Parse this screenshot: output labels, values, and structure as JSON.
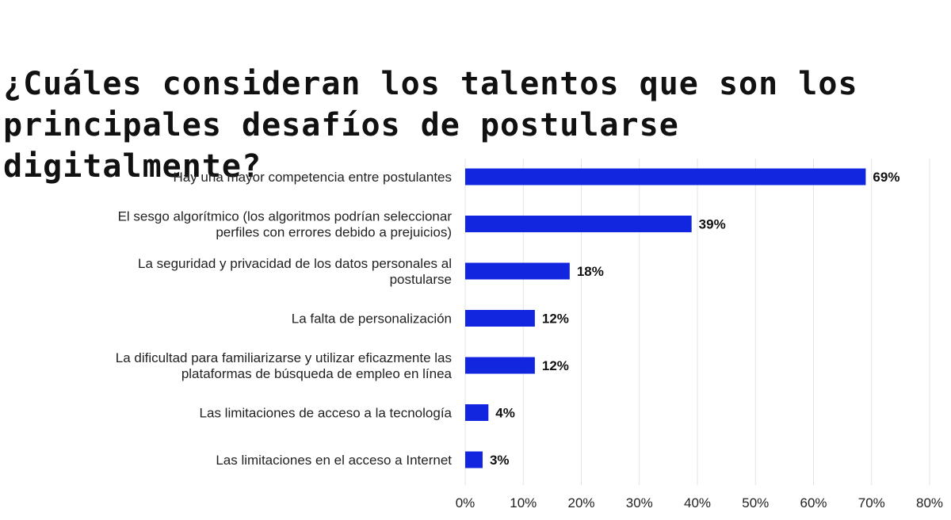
{
  "chart_data": {
    "type": "bar",
    "orientation": "horizontal",
    "title": "¿Cuáles consideran los talentos que son los principales desafíos de postularse digitalmente?",
    "categories": [
      "Hay una mayor competencia entre postulantes",
      "El sesgo algorítmico (los algoritmos podrían seleccionar perfiles con errores debido a prejuicios)",
      "La seguridad y privacidad de los datos personales al postularse",
      "La falta de personalización",
      "La dificultad para familiarizarse y utilizar eficazmente las plataformas de búsqueda de empleo en línea",
      "Las limitaciones de acceso a la tecnología",
      "Las limitaciones en el acceso a Internet"
    ],
    "category_lines": [
      [
        "Hay una mayor competencia entre postulantes"
      ],
      [
        "El sesgo algorítmico (los algoritmos podrían seleccionar",
        "perfiles con errores debido a prejuicios)"
      ],
      [
        "La seguridad y privacidad de los datos personales al",
        "postularse"
      ],
      [
        "La falta de personalización"
      ],
      [
        "La dificultad para familiarizarse y utilizar eficazmente las",
        "plataformas de búsqueda de empleo en línea"
      ],
      [
        "Las limitaciones de acceso a la tecnología"
      ],
      [
        "Las limitaciones en el acceso a Internet"
      ]
    ],
    "values": [
      69,
      39,
      18,
      12,
      12,
      4,
      3
    ],
    "value_labels": [
      "69%",
      "39%",
      "18%",
      "12%",
      "12%",
      "4%",
      "3%"
    ],
    "xlim": [
      0,
      80
    ],
    "x_ticks": [
      "0%",
      "10%",
      "20%",
      "30%",
      "40%",
      "50%",
      "60%",
      "70%",
      "80%"
    ],
    "xlabel": "",
    "ylabel": "",
    "grid": "vertical",
    "bar_color": "#1226e0"
  }
}
